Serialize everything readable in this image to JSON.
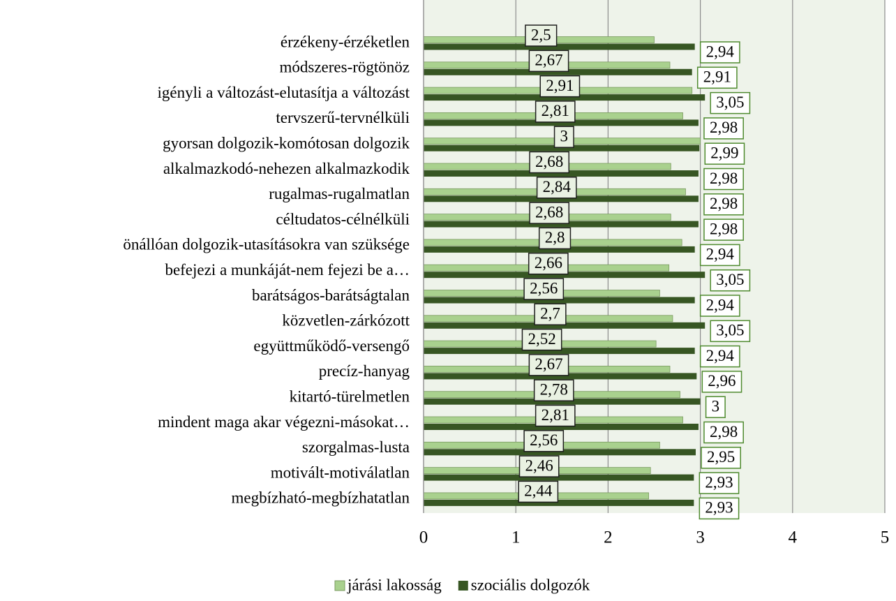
{
  "chart_data": {
    "type": "barh",
    "categories": [
      "érzékeny-érzéketlen",
      "módszeres-rögtönöz",
      "igényli a változást-elutasítja a változást",
      "tervszerű-tervnélküli",
      "gyorsan dolgozik-komótosan dolgozik",
      "alkalmazkodó-nehezen alkalmazkodik",
      "rugalmas-rugalmatlan",
      "céltudatos-célnélküli",
      "önállóan dolgozik-utasításokra van szüksége",
      "befejezi a munkáját-nem fejezi be a…",
      "barátságos-barátságtalan",
      "közvetlen-zárkózott",
      "együttműködő-versengő",
      "precíz-hanyag",
      "kitartó-türelmetlen",
      "mindent maga akar végezni-másokat…",
      "szorgalmas-lusta",
      "motivált-motiválatlan",
      "megbízható-megbízhatatlan"
    ],
    "series": [
      {
        "name": "járási lakosság",
        "color": "#a9d18e",
        "values": [
          2.5,
          2.67,
          2.91,
          2.81,
          3,
          2.68,
          2.84,
          2.68,
          2.8,
          2.66,
          2.56,
          2.7,
          2.52,
          2.67,
          2.78,
          2.81,
          2.56,
          2.46,
          2.44
        ],
        "value_labels": [
          "2,5",
          "2,67",
          "2,91",
          "2,81",
          "3",
          "2,68",
          "2,84",
          "2,68",
          "2,8",
          "2,66",
          "2,56",
          "2,7",
          "2,52",
          "2,67",
          "2,78",
          "2,81",
          "2,56",
          "2,46",
          "2,44"
        ]
      },
      {
        "name": "szociális dolgozók",
        "color": "#375623",
        "values": [
          2.94,
          2.91,
          3.05,
          2.98,
          2.99,
          2.98,
          2.98,
          2.98,
          2.94,
          3.05,
          2.94,
          3.05,
          2.94,
          2.96,
          3,
          2.98,
          2.95,
          2.93,
          2.93
        ],
        "value_labels": [
          "2,94",
          "2,91",
          "3,05",
          "2,98",
          "2,99",
          "2,98",
          "2,98",
          "2,98",
          "2,94",
          "3,05",
          "2,94",
          "3,05",
          "2,94",
          "2,96",
          "3",
          "2,98",
          "2,95",
          "2,93",
          "2,93"
        ]
      }
    ],
    "xlim": [
      0,
      5
    ],
    "xticks": [
      0,
      1,
      2,
      3,
      4,
      5
    ],
    "grid": true,
    "legend": "bottom"
  }
}
